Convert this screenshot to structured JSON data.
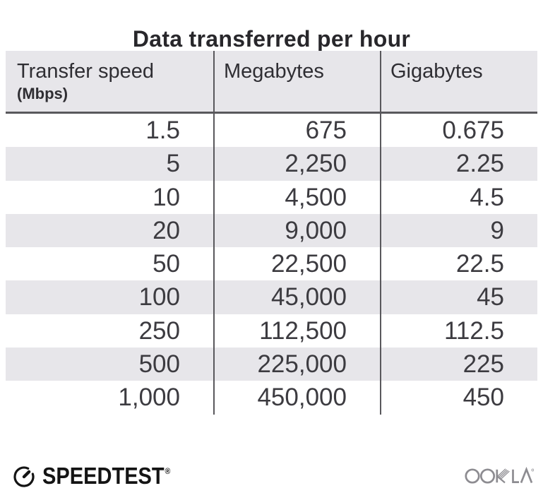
{
  "title": "Data transferred per hour",
  "table": {
    "column_keys": [
      "transfer-speed-mbps",
      "megabytes",
      "gigabytes"
    ],
    "columns": [
      {
        "label": "Transfer speed",
        "sublabel": "(Mbps)"
      },
      {
        "label": "Megabytes"
      },
      {
        "label": "Gigabytes"
      }
    ],
    "rows": [
      [
        "1.5",
        "675",
        "0.675"
      ],
      [
        "5",
        "2,250",
        "2.25"
      ],
      [
        "10",
        "4,500",
        "4.5"
      ],
      [
        "20",
        "9,000",
        "9"
      ],
      [
        "50",
        "22,500",
        "22.5"
      ],
      [
        "100",
        "45,000",
        "45"
      ],
      [
        "250",
        "112,500",
        "112.5"
      ],
      [
        "500",
        "225,000",
        "225"
      ],
      [
        "1,000",
        "450,000",
        "450"
      ]
    ]
  },
  "chart_data": {
    "type": "table",
    "title": "Data transferred per hour",
    "columns": [
      "Transfer speed (Mbps)",
      "Megabytes",
      "Gigabytes"
    ],
    "rows": [
      [
        1.5,
        675,
        0.675
      ],
      [
        5,
        2250,
        2.25
      ],
      [
        10,
        4500,
        4.5
      ],
      [
        20,
        9000,
        9
      ],
      [
        50,
        22500,
        22.5
      ],
      [
        100,
        45000,
        45
      ],
      [
        250,
        112500,
        112.5
      ],
      [
        500,
        225000,
        225
      ],
      [
        1000,
        450000,
        450
      ]
    ]
  },
  "footer": {
    "speedtest_label": "SPEEDTEST",
    "registered_mark": "®",
    "ookla_label": "OOKLA"
  },
  "icons": {
    "speedtest_gauge": "speedtest-gauge-icon",
    "ookla_wordmark": "ookla-logo"
  },
  "colors": {
    "header_bg": "#e7e6ea",
    "row_alt_bg": "#e7e6ea",
    "divider": "#59585c",
    "title_text": "#28272b",
    "body_text": "#3c3b40",
    "speedtest_black": "#141414",
    "ookla_gray": "#8d8c91"
  }
}
